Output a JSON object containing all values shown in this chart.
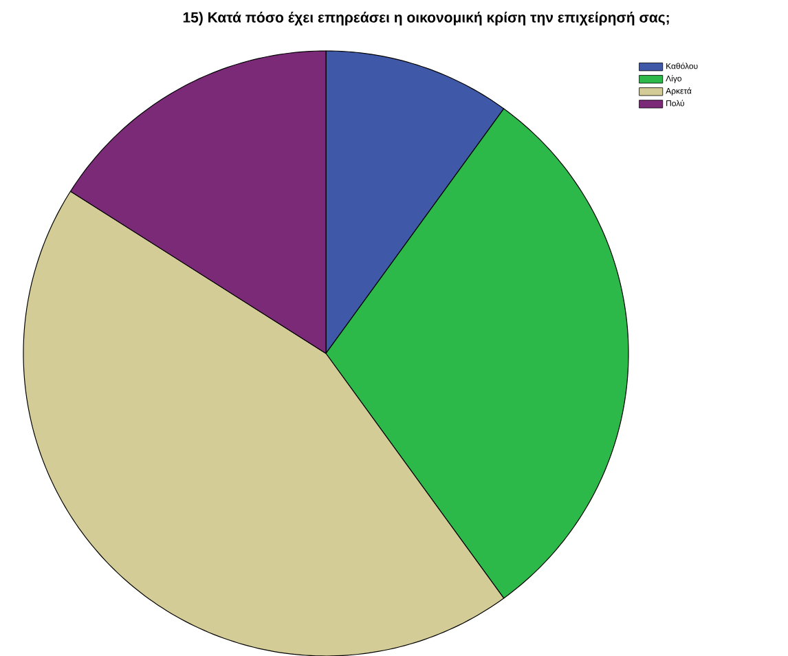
{
  "chart_data": {
    "type": "pie",
    "title": "15) Κατά πόσο έχει επηρεάσει η οικονομική κρίση την επιχείρησή σας;",
    "categories": [
      "Καθόλου",
      "Λίγο",
      "Αρκετά",
      "Πολύ"
    ],
    "values": [
      10,
      30,
      44,
      16
    ],
    "colors": [
      "#3f58a8",
      "#2db84a",
      "#d4cc96",
      "#7b2a78"
    ],
    "legend": "top right"
  }
}
